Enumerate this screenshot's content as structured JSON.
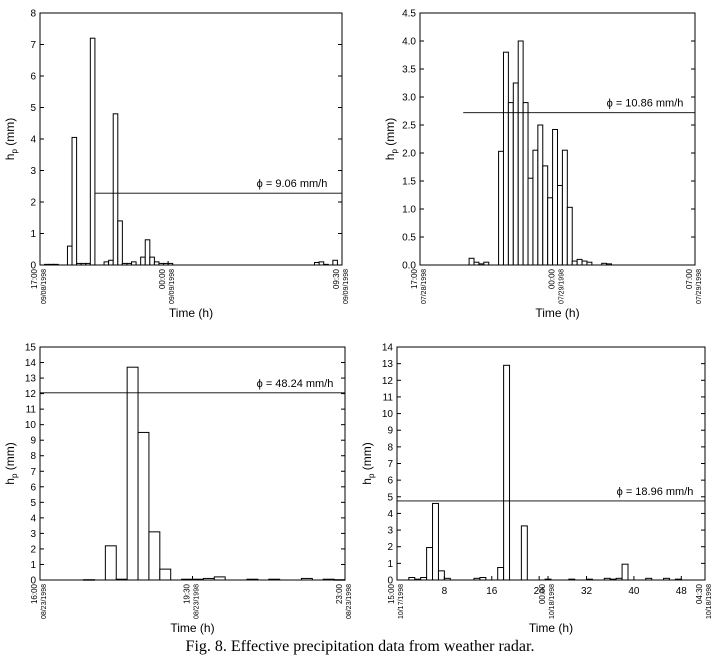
{
  "caption": "Fig. 8. Effective precipitation data from weather radar.",
  "chart_data": [
    {
      "type": "bar",
      "ylabel": "h_p (mm)",
      "xlabel": "Time (h)",
      "ylim": [
        0,
        8
      ],
      "yticks": [
        0,
        1,
        2,
        3,
        4,
        5,
        6,
        7,
        8
      ],
      "xlim": [
        0,
        16.5
      ],
      "time_ticks": [
        {
          "x": 0,
          "time": "17:00",
          "date": "09/08/1998"
        },
        {
          "x": 7,
          "time": "00:00",
          "date": "09/09/1998"
        },
        {
          "x": 16.5,
          "time": "09:30",
          "date": "09/09/1998"
        }
      ],
      "bar_width": 0.25,
      "bars": [
        [
          0.25,
          0.02
        ],
        [
          0.5,
          0.02
        ],
        [
          0.75,
          0.02
        ],
        [
          1.5,
          0.6
        ],
        [
          1.75,
          4.05
        ],
        [
          2.0,
          0.05
        ],
        [
          2.25,
          0.05
        ],
        [
          2.5,
          0.05
        ],
        [
          2.75,
          7.2
        ],
        [
          3.5,
          0.1
        ],
        [
          3.75,
          0.15
        ],
        [
          4.0,
          4.8
        ],
        [
          4.25,
          1.4
        ],
        [
          4.5,
          0.05
        ],
        [
          4.75,
          0.05
        ],
        [
          5.0,
          0.1
        ],
        [
          5.5,
          0.25
        ],
        [
          5.75,
          0.8
        ],
        [
          6.0,
          0.25
        ],
        [
          6.25,
          0.1
        ],
        [
          6.5,
          0.05
        ],
        [
          6.75,
          0.05
        ],
        [
          7.0,
          0.05
        ],
        [
          15.0,
          0.08
        ],
        [
          15.25,
          0.1
        ],
        [
          15.5,
          0.02
        ],
        [
          16.0,
          0.15
        ]
      ],
      "phi": {
        "value": 2.28,
        "x_start": 3.0,
        "label": "ϕ = 9.06 mm/h"
      }
    },
    {
      "type": "bar",
      "ylabel": "h_p (mm)",
      "xlabel": "Time (h)",
      "ylim": [
        0,
        4.5
      ],
      "yticks": [
        0.0,
        0.5,
        1.0,
        1.5,
        2.0,
        2.5,
        3.0,
        3.5,
        4.0,
        4.5
      ],
      "ytick_labels": [
        "0.0",
        "0.5",
        "1.0",
        "1.5",
        "2.0",
        "2.5",
        "3.0",
        "3.5",
        "4.0",
        "4.5"
      ],
      "xlim": [
        0,
        14
      ],
      "time_ticks": [
        {
          "x": 0,
          "time": "17:00",
          "date": "07/28/1998"
        },
        {
          "x": 7,
          "time": "00:00",
          "date": "07/29/1998"
        },
        {
          "x": 14,
          "time": "07:00",
          "date": "07/29/1998"
        }
      ],
      "bar_width": 0.25,
      "bars": [
        [
          2.5,
          0.12
        ],
        [
          2.75,
          0.05
        ],
        [
          3.0,
          0.02
        ],
        [
          3.25,
          0.05
        ],
        [
          4.0,
          2.03
        ],
        [
          4.25,
          3.8
        ],
        [
          4.5,
          2.9
        ],
        [
          4.75,
          3.25
        ],
        [
          5.0,
          4.0
        ],
        [
          5.25,
          2.9
        ],
        [
          5.5,
          1.55
        ],
        [
          5.75,
          2.05
        ],
        [
          6.0,
          2.5
        ],
        [
          6.25,
          1.77
        ],
        [
          6.5,
          1.2
        ],
        [
          6.75,
          2.42
        ],
        [
          7.0,
          1.42
        ],
        [
          7.25,
          2.05
        ],
        [
          7.5,
          1.03
        ],
        [
          7.75,
          0.07
        ],
        [
          8.0,
          0.1
        ],
        [
          8.25,
          0.07
        ],
        [
          8.5,
          0.05
        ],
        [
          9.25,
          0.03
        ],
        [
          9.5,
          0.02
        ]
      ],
      "phi": {
        "value": 2.72,
        "x_start": 2.2,
        "label": "ϕ = 10.86 mm/h"
      }
    },
    {
      "type": "bar",
      "ylabel": "h_p (mm)",
      "xlabel": "Time (h)",
      "ylim": [
        0,
        15
      ],
      "yticks": [
        0,
        1,
        2,
        3,
        4,
        5,
        6,
        7,
        8,
        9,
        10,
        11,
        12,
        13,
        14,
        15
      ],
      "xlim": [
        0,
        7
      ],
      "time_ticks": [
        {
          "x": 0,
          "time": "16:00",
          "date": "08/23/1998"
        },
        {
          "x": 3.5,
          "time": "19:30",
          "date": "08/23/1998"
        },
        {
          "x": 7,
          "time": "23:00",
          "date": "08/23/1998"
        }
      ],
      "bar_width": 0.25,
      "bars": [
        [
          1.0,
          0.02
        ],
        [
          1.5,
          2.2
        ],
        [
          1.75,
          0.05
        ],
        [
          2.0,
          13.7
        ],
        [
          2.25,
          9.5
        ],
        [
          2.5,
          3.1
        ],
        [
          2.75,
          0.7
        ],
        [
          3.25,
          0.05
        ],
        [
          3.5,
          0.05
        ],
        [
          3.75,
          0.1
        ],
        [
          4.0,
          0.2
        ],
        [
          4.75,
          0.05
        ],
        [
          5.25,
          0.05
        ],
        [
          6.0,
          0.1
        ],
        [
          6.5,
          0.05
        ],
        [
          6.75,
          0.02
        ]
      ],
      "phi": {
        "value": 12.05,
        "x_start": 0,
        "label": "ϕ = 48.24 mm/h"
      }
    },
    {
      "type": "bar",
      "ylabel": "h_p (mm)",
      "xlabel": "Time (h)",
      "ylim": [
        0,
        14
      ],
      "yticks": [
        0,
        1,
        2,
        3,
        4,
        5,
        6,
        7,
        8,
        9,
        10,
        11,
        12,
        13,
        14
      ],
      "xlim": [
        0,
        52
      ],
      "xticks": [
        8,
        16,
        24,
        32,
        40,
        48
      ],
      "time_ticks": [
        {
          "x": 0,
          "time": "15:00",
          "date": "10/17/1998"
        },
        {
          "x": 25.5,
          "time": "00:00",
          "date": "10/18/1998"
        },
        {
          "x": 52,
          "time": "04:30",
          "date": "10/18/1998"
        }
      ],
      "bar_width": 1,
      "bars": [
        [
          2,
          0.15
        ],
        [
          3,
          0.05
        ],
        [
          4,
          0.15
        ],
        [
          5,
          1.95
        ],
        [
          6,
          4.6
        ],
        [
          7,
          0.55
        ],
        [
          8,
          0.1
        ],
        [
          13,
          0.1
        ],
        [
          14,
          0.15
        ],
        [
          17,
          0.75
        ],
        [
          18,
          12.9
        ],
        [
          21,
          3.25
        ],
        [
          25,
          0.05
        ],
        [
          29,
          0.05
        ],
        [
          32,
          0.05
        ],
        [
          35,
          0.1
        ],
        [
          36,
          0.05
        ],
        [
          37,
          0.1
        ],
        [
          38,
          0.95
        ],
        [
          42,
          0.1
        ],
        [
          45,
          0.1
        ],
        [
          47,
          0.05
        ]
      ],
      "phi": {
        "value": 4.75,
        "x_start": 0,
        "label": "ϕ = 18.96 mm/h"
      }
    }
  ]
}
